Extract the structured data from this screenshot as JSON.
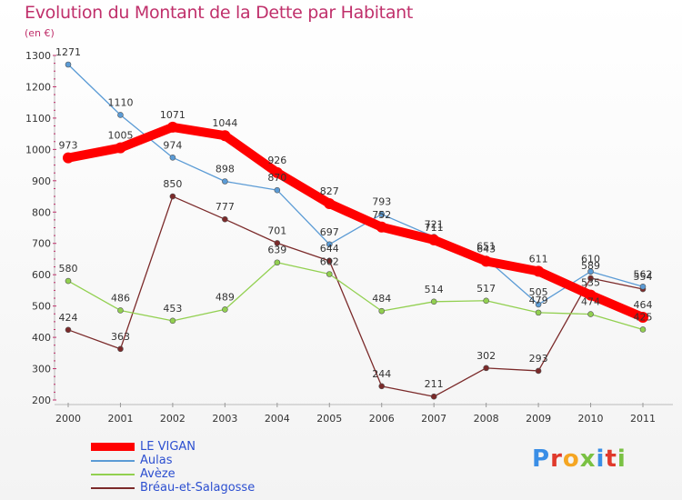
{
  "title": "Evolution du Montant de la Dette par Habitant",
  "subtitle": "(en €)",
  "brand": {
    "text": "Proxiti",
    "letters": [
      {
        "char": "P",
        "color": "#3a8ee6"
      },
      {
        "char": "r",
        "color": "#e0392b"
      },
      {
        "char": "o",
        "color": "#f5a623"
      },
      {
        "char": "x",
        "color": "#7ac143"
      },
      {
        "char": "i",
        "color": "#3a8ee6"
      },
      {
        "char": "t",
        "color": "#e0392b"
      },
      {
        "char": "i",
        "color": "#7ac143"
      }
    ]
  },
  "chart_data": {
    "type": "line",
    "title": "Evolution du Montant de la Dette par Habitant",
    "subtitle": "(en €)",
    "x": [
      "2000",
      "2001",
      "2002",
      "2003",
      "2004",
      "2005",
      "2006",
      "2007",
      "2008",
      "2009",
      "2010",
      "2011"
    ],
    "ylim": [
      200,
      1300
    ],
    "yticks": [
      200,
      300,
      400,
      500,
      600,
      700,
      800,
      900,
      1000,
      1100,
      1200,
      1300
    ],
    "grid": false,
    "legend_position": "bottom-left",
    "series": [
      {
        "name": "LE VIGAN",
        "color": "#ff0000",
        "values": [
          973,
          1005,
          1071,
          1044,
          926,
          827,
          752,
          711,
          643,
          611,
          535,
          464
        ],
        "labels": [
          "973",
          "1005",
          "1071",
          "1044",
          "926",
          "827",
          "752",
          "711",
          "643",
          "611",
          "535",
          "464"
        ]
      },
      {
        "name": "Aulas",
        "color": "#5b9bd5",
        "values": [
          1271,
          1110,
          974,
          898,
          870,
          697,
          793,
          721,
          651,
          505,
          610,
          562
        ],
        "labels": [
          "1271",
          "1110",
          "974",
          "898",
          "870",
          "697",
          "793",
          "721",
          "651",
          "505",
          "610",
          "562"
        ]
      },
      {
        "name": "Avèze",
        "color": "#92d050",
        "values": [
          580,
          486,
          453,
          489,
          639,
          602,
          484,
          514,
          517,
          479,
          474,
          425
        ],
        "labels": [
          "580",
          "486",
          "453",
          "489",
          "639",
          "602",
          "484",
          "514",
          "517",
          "479",
          "474",
          "425"
        ]
      },
      {
        "name": "Bréau-et-Salagosse",
        "color": "#7b2a2a",
        "values": [
          424,
          363,
          850,
          777,
          701,
          644,
          244,
          211,
          302,
          293,
          589,
          554
        ],
        "labels": [
          "424",
          "363",
          "850",
          "777",
          "701",
          "644",
          "244",
          "211",
          "302",
          "293",
          "589",
          "554"
        ]
      }
    ]
  }
}
